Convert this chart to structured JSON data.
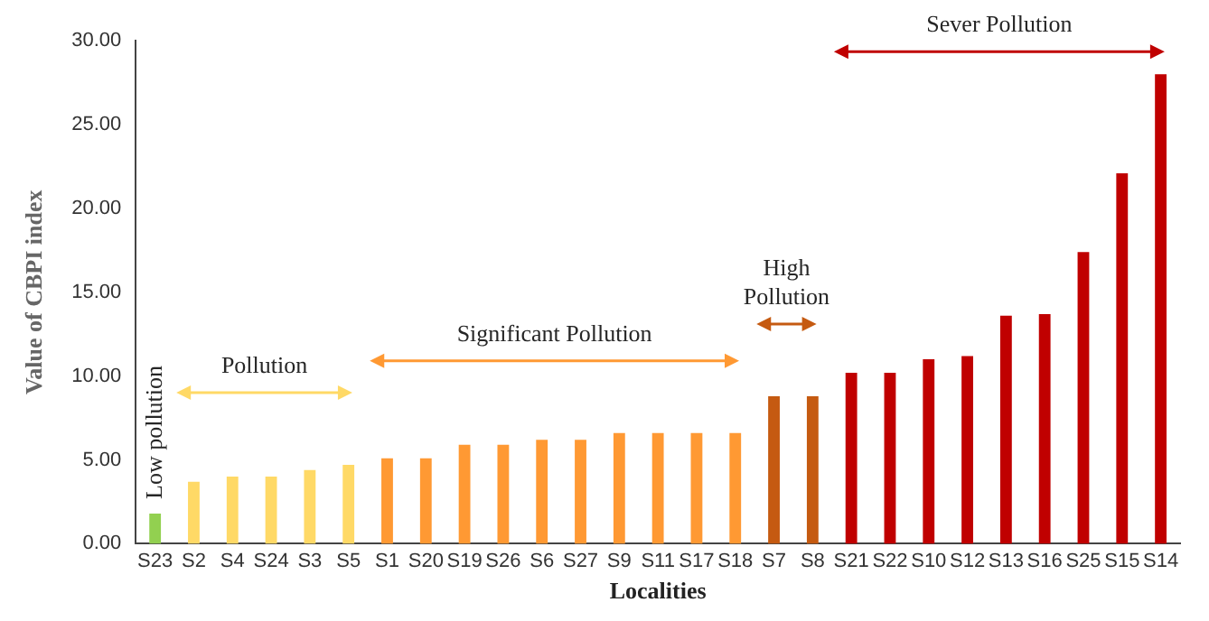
{
  "chart_data": {
    "type": "bar",
    "xlabel": "Localities",
    "ylabel": "Value of CBPI index",
    "categories": [
      "S23",
      "S2",
      "S4",
      "S24",
      "S3",
      "S5",
      "S1",
      "S20",
      "S19",
      "S26",
      "S6",
      "S27",
      "S9",
      "S11",
      "S17",
      "S18",
      "S7",
      "S8",
      "S21",
      "S22",
      "S10",
      "S12",
      "S13",
      "S16",
      "S25",
      "S15",
      "S14"
    ],
    "values": [
      1.8,
      3.7,
      4.0,
      4.0,
      4.4,
      4.7,
      5.1,
      5.1,
      5.9,
      5.9,
      6.2,
      6.2,
      6.6,
      6.6,
      6.6,
      6.6,
      8.8,
      8.8,
      10.2,
      10.2,
      11.0,
      11.2,
      13.6,
      13.7,
      17.4,
      22.1,
      28.0
    ],
    "colors": [
      "#92d050",
      "#ffd966",
      "#ffd966",
      "#ffd966",
      "#ffd966",
      "#ffd966",
      "#ff9933",
      "#ff9933",
      "#ff9933",
      "#ff9933",
      "#ff9933",
      "#ff9933",
      "#ff9933",
      "#ff9933",
      "#ff9933",
      "#ff9933",
      "#c55a11",
      "#c55a11",
      "#c00000",
      "#c00000",
      "#c00000",
      "#c00000",
      "#c00000",
      "#c00000",
      "#c00000",
      "#c00000",
      "#c00000"
    ],
    "ylim": [
      0,
      30
    ],
    "yticks": [
      {
        "value": 0,
        "label": "0.00"
      },
      {
        "value": 5,
        "label": "5.00"
      },
      {
        "value": 10,
        "label": "10.00"
      },
      {
        "value": 15,
        "label": "15.00"
      },
      {
        "value": 20,
        "label": "20.00"
      },
      {
        "value": 25,
        "label": "25.00"
      },
      {
        "value": 30,
        "label": "30.00"
      }
    ],
    "grid": false,
    "legend": false,
    "annotations": [
      "Low pollution",
      "Pollution",
      "Significant Pollution",
      "High Pollution",
      "Sever Pollution"
    ]
  }
}
